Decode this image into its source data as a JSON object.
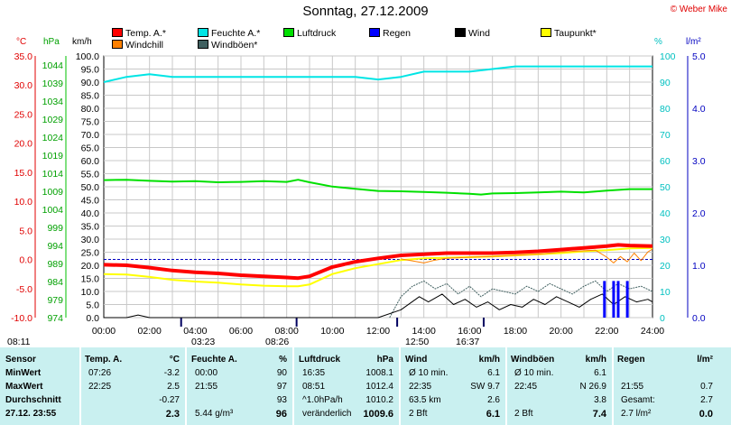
{
  "title": "Sonntag, 27.12.2009",
  "copyright": "© Weber Mike",
  "legend": [
    {
      "label": "Temp. A.*",
      "color": "#ff0000"
    },
    {
      "label": "Feuchte A.*",
      "color": "#00e5e5"
    },
    {
      "label": "Luftdruck",
      "color": "#00e000"
    },
    {
      "label": "Regen",
      "color": "#0000ff"
    },
    {
      "label": "Wind",
      "color": "#000000"
    },
    {
      "label": "Taupunkt*",
      "color": "#ffff00"
    },
    {
      "label": "Windchill",
      "color": "#ff8000"
    },
    {
      "label": "Windböen*",
      "color": "#406060"
    }
  ],
  "axis_units": {
    "temp": "°C",
    "pressure": "hPa",
    "wind": "km/h",
    "humidity": "%",
    "rain": "l/m²"
  },
  "axes": {
    "temp_ticks": [
      "35.0",
      "30.0",
      "25.0",
      "20.0",
      "15.0",
      "10.0",
      "5.0",
      "0.0",
      "-5.0",
      "-10.0"
    ],
    "pressure_ticks": [
      "1044",
      "1039",
      "1034",
      "1029",
      "1024",
      "1019",
      "1014",
      "1009",
      "1004",
      "999",
      "994",
      "989",
      "984",
      "979",
      "974"
    ],
    "wind_ticks": [
      "100.0",
      "95.0",
      "90.0",
      "85.0",
      "80.0",
      "75.0",
      "70.0",
      "65.0",
      "60.0",
      "55.0",
      "50.0",
      "45.0",
      "40.0",
      "35.0",
      "30.0",
      "25.0",
      "20.0",
      "15.0",
      "10.0",
      "5.0",
      "0.0"
    ],
    "humidity_ticks": [
      "100",
      "90",
      "80",
      "70",
      "60",
      "50",
      "40",
      "30",
      "20",
      "10",
      "0"
    ],
    "rain_ticks": [
      "5.0",
      "4.0",
      "3.0",
      "2.0",
      "1.0",
      "0.0"
    ],
    "time_ticks": [
      "00:00",
      "02:00",
      "04:00",
      "06:00",
      "08:00",
      "10:00",
      "12:00",
      "14:00",
      "16:00",
      "18:00",
      "20:00",
      "22:00",
      "24:00"
    ]
  },
  "time_markers": [
    "08:11",
    "03:23",
    "08:26",
    "12:50",
    "16:37"
  ],
  "chart_data": {
    "type": "line",
    "title": "Sonntag, 27.12.2009",
    "x_unit": "hours",
    "xlim": [
      0,
      24
    ],
    "series": [
      {
        "name": "Temp. A.*",
        "axis": "temp",
        "x": [
          0,
          1,
          2,
          3,
          4,
          5,
          6,
          7,
          8,
          8.5,
          9,
          10,
          11,
          12,
          13,
          14,
          15,
          16,
          17,
          18,
          19,
          20,
          21,
          22,
          22.5,
          23,
          24
        ],
        "y": [
          -0.9,
          -1.0,
          -1.4,
          -1.9,
          -2.2,
          -2.4,
          -2.7,
          -2.9,
          -3.1,
          -3.2,
          -2.9,
          -1.3,
          -0.4,
          0.2,
          0.7,
          0.9,
          1.1,
          1.1,
          1.1,
          1.2,
          1.4,
          1.7,
          2.0,
          2.3,
          2.5,
          2.4,
          2.3
        ]
      },
      {
        "name": "Feuchte A.*",
        "axis": "humidity",
        "x": [
          0,
          1,
          2,
          3,
          4,
          5,
          6,
          7,
          8,
          9,
          10,
          11,
          12,
          13,
          14,
          15,
          16,
          17,
          18,
          19,
          20,
          21,
          22,
          23,
          24
        ],
        "y": [
          90,
          92,
          93,
          92,
          92,
          92,
          92,
          92,
          92,
          92,
          92,
          92,
          91,
          92,
          94,
          94,
          94,
          95,
          96,
          96,
          96,
          96,
          96,
          96,
          96
        ]
      },
      {
        "name": "Luftdruck",
        "axis": "pressure",
        "x": [
          0,
          1,
          2,
          3,
          4,
          5,
          6,
          7,
          8,
          8.5,
          9,
          10,
          11,
          12,
          13,
          14,
          15,
          16,
          16.5,
          17,
          18,
          19,
          20,
          21,
          22,
          23,
          24
        ],
        "y": [
          1012.1,
          1012.2,
          1011.9,
          1011.7,
          1011.8,
          1011.5,
          1011.6,
          1011.8,
          1011.6,
          1012.2,
          1011.5,
          1010.3,
          1009.7,
          1009.1,
          1009.0,
          1008.8,
          1008.6,
          1008.3,
          1008.1,
          1008.4,
          1008.5,
          1008.7,
          1008.9,
          1008.7,
          1009.2,
          1009.6,
          1009.6
        ]
      },
      {
        "name": "Wind",
        "axis": "wind",
        "x": [
          0,
          1,
          1.5,
          2,
          12,
          13,
          13.8,
          14.2,
          14.8,
          15.3,
          15.8,
          16.3,
          16.8,
          17.3,
          17.8,
          18.3,
          18.8,
          19.3,
          19.8,
          20.3,
          20.8,
          21.3,
          21.8,
          22.3,
          22.8,
          23.3,
          23.8,
          24
        ],
        "y": [
          0,
          0,
          1,
          0,
          0,
          3,
          8,
          6,
          9,
          5,
          7,
          4,
          6,
          3,
          5,
          4,
          7,
          5,
          8,
          6,
          4,
          7,
          9,
          5,
          8,
          6,
          7,
          6
        ]
      },
      {
        "name": "Windböen*",
        "axis": "wind",
        "x": [
          12.5,
          13,
          13.5,
          14,
          14.5,
          15,
          15.5,
          16,
          16.5,
          17,
          17.5,
          18,
          18.5,
          19,
          19.5,
          20,
          20.5,
          21,
          21.5,
          22,
          22.5,
          23,
          23.5,
          24
        ],
        "y": [
          0,
          8,
          12,
          14,
          11,
          13,
          9,
          12,
          8,
          11,
          10,
          9,
          12,
          10,
          13,
          11,
          9,
          12,
          14,
          10,
          13,
          11,
          12,
          10
        ]
      },
      {
        "name": "Taupunkt*",
        "axis": "temp",
        "x": [
          0,
          1,
          2,
          3,
          4,
          5,
          6,
          7,
          8,
          8.5,
          9,
          10,
          11,
          12,
          13,
          14,
          15,
          16,
          17,
          18,
          19,
          20,
          21,
          22,
          23,
          24
        ],
        "y": [
          -2.5,
          -2.6,
          -3.0,
          -3.5,
          -3.8,
          -4.0,
          -4.3,
          -4.5,
          -4.6,
          -4.6,
          -4.3,
          -2.5,
          -1.5,
          -0.8,
          -0.1,
          0.2,
          0.3,
          0.4,
          0.5,
          0.7,
          0.9,
          1.1,
          1.4,
          1.6,
          1.9,
          2.0
        ]
      },
      {
        "name": "Windchill",
        "axis": "temp",
        "x": [
          13,
          14,
          14.5,
          15,
          16,
          17,
          18,
          19,
          20,
          21,
          21.5,
          22,
          22.3,
          22.6,
          22.9,
          23.2,
          23.5,
          23.8,
          24
        ],
        "y": [
          0.1,
          -0.6,
          -0.1,
          0.2,
          0.4,
          0.5,
          0.7,
          0.9,
          1.3,
          1.5,
          1.6,
          0.4,
          -0.6,
          0.5,
          -0.4,
          1.1,
          -0.2,
          1.3,
          1.8
        ]
      },
      {
        "name": "Regen",
        "axis": "rain",
        "type": "bar",
        "x": [
          21.9,
          22.3,
          22.5,
          22.9
        ],
        "y": [
          0.7,
          0.7,
          0.7,
          0.7
        ]
      }
    ],
    "dashed_zero_line": true,
    "grid": true
  },
  "stats": {
    "headers": {
      "sensor": "Sensor",
      "temp": "Temp. A.",
      "temp_unit": "°C",
      "humidity": "Feuchte A.",
      "humidity_unit": "%",
      "pressure": "Luftdruck",
      "pressure_unit": "hPa",
      "wind": "Wind",
      "wind_unit": "km/h",
      "gust": "Windböen",
      "gust_unit": "km/h",
      "rain": "Regen",
      "rain_unit": "l/m²"
    },
    "rows": [
      {
        "label": "MinWert",
        "temp_time": "07:26",
        "temp": "-3.2",
        "hum_time": "00:00",
        "hum": "90",
        "pres_time": "16:35",
        "pres": "1008.1",
        "wind_label": "Ø 10 min.",
        "wind": "6.1",
        "gust_label": "Ø 10 min.",
        "gust": "6.1",
        "rain_label": "",
        "rain": ""
      },
      {
        "label": "MaxWert",
        "temp_time": "22:25",
        "temp": "2.5",
        "hum_time": "21:55",
        "hum": "97",
        "pres_time": "08:51",
        "pres": "1012.4",
        "wind_label": "22:35",
        "wind": "SW 9.7",
        "gust_label": "22:45",
        "gust": "N 26.9",
        "rain_label": "21:55",
        "rain": "0.7"
      },
      {
        "label": "Durchschnitt",
        "temp_time": "",
        "temp": "-0.27",
        "hum_time": "",
        "hum": "93",
        "pres_time": "^1.0hPa/h",
        "pres": "1010.2",
        "wind_label": "63.5 km",
        "wind": "2.6",
        "gust_label": "",
        "gust": "3.8",
        "rain_label": "Gesamt:",
        "rain": "2.7"
      },
      {
        "label": "27.12. 23:55",
        "temp_time": "",
        "temp": "2.3",
        "hum_time": "5.44 g/m³",
        "hum": "96",
        "pres_time": "veränderlich",
        "pres": "1009.6",
        "wind_label": "2 Bft",
        "wind": "6.1",
        "gust_label": "2 Bft",
        "gust": "7.4",
        "rain_label": "2.7 l/m²",
        "rain": "0.0"
      }
    ]
  }
}
